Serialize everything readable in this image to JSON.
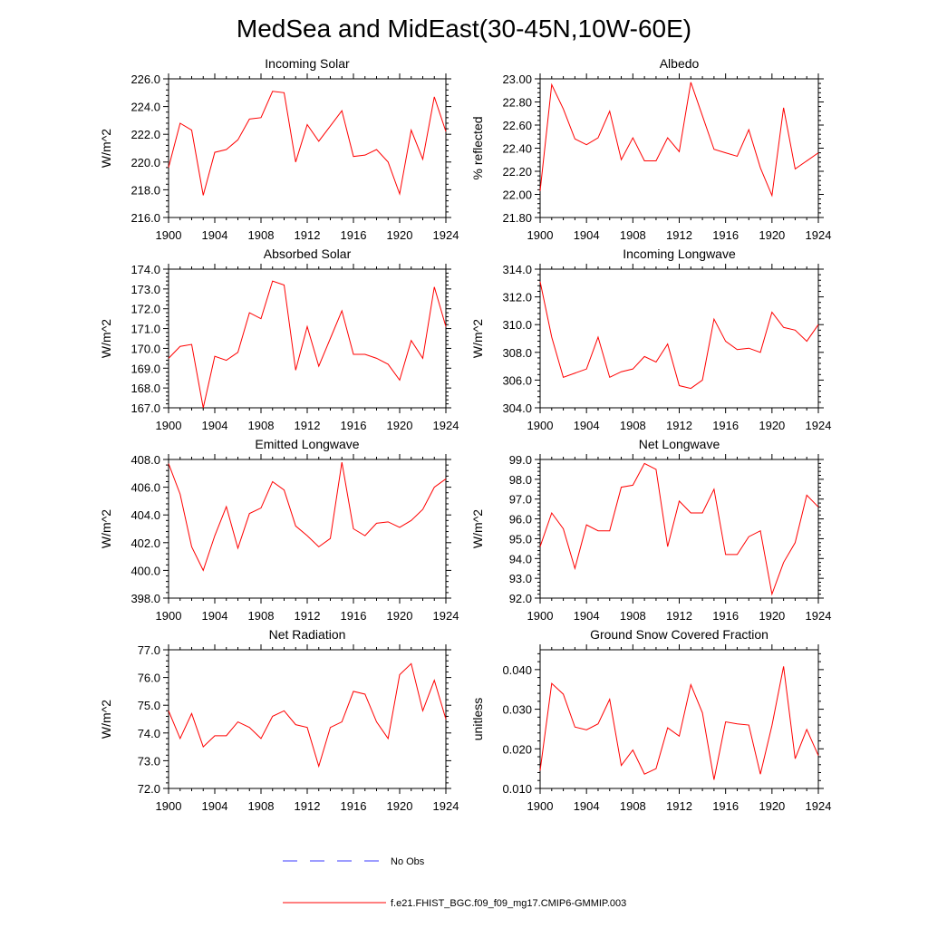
{
  "figure": {
    "title": "MedSea and MidEast(30-45N,10W-60E)",
    "legend": [
      {
        "label": "No Obs",
        "color": "#3b3bff",
        "dash": "dashed"
      },
      {
        "label": "f.e21.FHIST_BGC.f09_f09_mg17.CMIP6-GMMIP.003",
        "color": "#ff0000",
        "dash": "solid"
      }
    ]
  },
  "chart_data": [
    {
      "type": "line",
      "title": "Incoming Solar",
      "xlabel": "",
      "ylabel": "W/m^2",
      "xlim": [
        1900,
        1924
      ],
      "ylim": [
        216.0,
        226.0
      ],
      "x_ticks": [
        1900,
        1904,
        1908,
        1912,
        1916,
        1920,
        1924
      ],
      "x_tick_labels": [
        "1900",
        "1904",
        "1908",
        "1912",
        "1916",
        "1920",
        "1924"
      ],
      "y_ticks": [
        216.0,
        218.0,
        220.0,
        222.0,
        224.0,
        226.0
      ],
      "y_tick_labels": [
        "216.0",
        "218.0",
        "220.0",
        "222.0",
        "224.0",
        "226.0"
      ],
      "series": [
        {
          "color": "#ff0000",
          "x": [
            1900,
            1901,
            1902,
            1903,
            1904,
            1905,
            1906,
            1907,
            1908,
            1909,
            1910,
            1911,
            1912,
            1913,
            1914,
            1915,
            1916,
            1917,
            1918,
            1919,
            1920,
            1921,
            1922,
            1923,
            1924
          ],
          "values": [
            219.6,
            222.8,
            222.3,
            217.6,
            220.7,
            220.9,
            221.6,
            223.1,
            223.2,
            225.1,
            225.0,
            220.0,
            222.7,
            221.5,
            222.6,
            223.7,
            220.4,
            220.5,
            220.9,
            220.0,
            217.7,
            222.3,
            220.2,
            224.7,
            222.2
          ]
        }
      ]
    },
    {
      "type": "line",
      "title": "Albedo",
      "xlabel": "",
      "ylabel": "% reflected",
      "xlim": [
        1900,
        1924
      ],
      "ylim": [
        21.8,
        23.0
      ],
      "x_ticks": [
        1900,
        1904,
        1908,
        1912,
        1916,
        1920,
        1924
      ],
      "x_tick_labels": [
        "1900",
        "1904",
        "1908",
        "1912",
        "1916",
        "1920",
        "1924"
      ],
      "y_ticks": [
        21.8,
        22.0,
        22.2,
        22.4,
        22.6,
        22.8,
        23.0
      ],
      "y_tick_labels": [
        "21.80",
        "22.00",
        "22.20",
        "22.40",
        "22.60",
        "22.80",
        "23.00"
      ],
      "series": [
        {
          "color": "#ff0000",
          "x": [
            1900,
            1901,
            1902,
            1903,
            1904,
            1905,
            1906,
            1907,
            1908,
            1909,
            1910,
            1911,
            1912,
            1913,
            1914,
            1915,
            1916,
            1917,
            1918,
            1919,
            1920,
            1921,
            1922,
            1923,
            1924
          ],
          "values": [
            22.03,
            22.95,
            22.74,
            22.48,
            22.43,
            22.49,
            22.72,
            22.3,
            22.49,
            22.29,
            22.29,
            22.49,
            22.37,
            22.97,
            22.68,
            22.39,
            22.36,
            22.33,
            22.56,
            22.23,
            21.99,
            22.75,
            22.22,
            22.29,
            22.36
          ]
        }
      ]
    },
    {
      "type": "line",
      "title": "Absorbed Solar",
      "xlabel": "",
      "ylabel": "W/m^2",
      "xlim": [
        1900,
        1924
      ],
      "ylim": [
        167.0,
        174.0
      ],
      "x_ticks": [
        1900,
        1904,
        1908,
        1912,
        1916,
        1920,
        1924
      ],
      "x_tick_labels": [
        "1900",
        "1904",
        "1908",
        "1912",
        "1916",
        "1920",
        "1924"
      ],
      "y_ticks": [
        167.0,
        168.0,
        169.0,
        170.0,
        171.0,
        172.0,
        173.0,
        174.0
      ],
      "y_tick_labels": [
        "167.0",
        "168.0",
        "169.0",
        "170.0",
        "171.0",
        "172.0",
        "173.0",
        "174.0"
      ],
      "series": [
        {
          "color": "#ff0000",
          "x": [
            1900,
            1901,
            1902,
            1903,
            1904,
            1905,
            1906,
            1907,
            1908,
            1909,
            1910,
            1911,
            1912,
            1913,
            1914,
            1915,
            1916,
            1917,
            1918,
            1919,
            1920,
            1921,
            1922,
            1923,
            1924
          ],
          "values": [
            169.5,
            170.1,
            170.2,
            167.0,
            169.6,
            169.4,
            169.8,
            171.8,
            171.5,
            173.4,
            173.2,
            168.9,
            171.1,
            169.1,
            170.5,
            171.9,
            169.7,
            169.7,
            169.5,
            169.2,
            168.4,
            170.4,
            169.5,
            173.1,
            171.1
          ]
        }
      ]
    },
    {
      "type": "line",
      "title": "Incoming Longwave",
      "xlabel": "",
      "ylabel": "W/m^2",
      "xlim": [
        1900,
        1924
      ],
      "ylim": [
        304.0,
        314.0
      ],
      "x_ticks": [
        1900,
        1904,
        1908,
        1912,
        1916,
        1920,
        1924
      ],
      "x_tick_labels": [
        "1900",
        "1904",
        "1908",
        "1912",
        "1916",
        "1920",
        "1924"
      ],
      "y_ticks": [
        304.0,
        306.0,
        308.0,
        310.0,
        312.0,
        314.0
      ],
      "y_tick_labels": [
        "304.0",
        "306.0",
        "308.0",
        "310.0",
        "312.0",
        "314.0"
      ],
      "series": [
        {
          "color": "#ff0000",
          "x": [
            1900,
            1901,
            1902,
            1903,
            1904,
            1905,
            1906,
            1907,
            1908,
            1909,
            1910,
            1911,
            1912,
            1913,
            1914,
            1915,
            1916,
            1917,
            1918,
            1919,
            1920,
            1921,
            1922,
            1923,
            1924
          ],
          "values": [
            313.1,
            309.1,
            306.2,
            306.5,
            306.8,
            309.1,
            306.2,
            306.6,
            306.8,
            307.7,
            307.3,
            308.6,
            305.6,
            305.4,
            306.0,
            310.4,
            308.8,
            308.2,
            308.3,
            308.0,
            310.9,
            309.8,
            309.6,
            308.8,
            310.0
          ]
        }
      ]
    },
    {
      "type": "line",
      "title": "Emitted Longwave",
      "xlabel": "",
      "ylabel": "W/m^2",
      "xlim": [
        1900,
        1924
      ],
      "ylim": [
        398.0,
        408.0
      ],
      "x_ticks": [
        1900,
        1904,
        1908,
        1912,
        1916,
        1920,
        1924
      ],
      "x_tick_labels": [
        "1900",
        "1904",
        "1908",
        "1912",
        "1916",
        "1920",
        "1924"
      ],
      "y_ticks": [
        398.0,
        400.0,
        402.0,
        404.0,
        406.0,
        408.0
      ],
      "y_tick_labels": [
        "398.0",
        "400.0",
        "402.0",
        "404.0",
        "406.0",
        "408.0"
      ],
      "series": [
        {
          "color": "#ff0000",
          "x": [
            1900,
            1901,
            1902,
            1903,
            1904,
            1905,
            1906,
            1907,
            1908,
            1909,
            1910,
            1911,
            1912,
            1913,
            1914,
            1915,
            1916,
            1917,
            1918,
            1919,
            1920,
            1921,
            1922,
            1923,
            1924
          ],
          "values": [
            407.7,
            405.5,
            401.7,
            400.0,
            402.5,
            404.6,
            401.6,
            404.1,
            404.5,
            406.4,
            405.8,
            403.2,
            402.5,
            401.7,
            402.3,
            407.8,
            403.0,
            402.5,
            403.4,
            403.5,
            403.1,
            403.6,
            404.4,
            406.0,
            406.6
          ]
        }
      ]
    },
    {
      "type": "line",
      "title": "Net Longwave",
      "xlabel": "",
      "ylabel": "W/m^2",
      "xlim": [
        1900,
        1924
      ],
      "ylim": [
        92.0,
        99.0
      ],
      "x_ticks": [
        1900,
        1904,
        1908,
        1912,
        1916,
        1920,
        1924
      ],
      "x_tick_labels": [
        "1900",
        "1904",
        "1908",
        "1912",
        "1916",
        "1920",
        "1924"
      ],
      "y_ticks": [
        92.0,
        93.0,
        94.0,
        95.0,
        96.0,
        97.0,
        98.0,
        99.0
      ],
      "y_tick_labels": [
        "92.0",
        "93.0",
        "94.0",
        "95.0",
        "96.0",
        "97.0",
        "98.0",
        "99.0"
      ],
      "series": [
        {
          "color": "#ff0000",
          "x": [
            1900,
            1901,
            1902,
            1903,
            1904,
            1905,
            1906,
            1907,
            1908,
            1909,
            1910,
            1911,
            1912,
            1913,
            1914,
            1915,
            1916,
            1917,
            1918,
            1919,
            1920,
            1921,
            1922,
            1923,
            1924
          ],
          "values": [
            94.6,
            96.3,
            95.5,
            93.5,
            95.7,
            95.4,
            95.4,
            97.6,
            97.7,
            98.8,
            98.5,
            94.6,
            96.9,
            96.3,
            96.3,
            97.5,
            94.2,
            94.2,
            95.1,
            95.4,
            92.2,
            93.8,
            94.8,
            97.2,
            96.6
          ]
        }
      ]
    },
    {
      "type": "line",
      "title": "Net Radiation",
      "xlabel": "",
      "ylabel": "W/m^2",
      "xlim": [
        1900,
        1924
      ],
      "ylim": [
        72.0,
        77.0
      ],
      "x_ticks": [
        1900,
        1904,
        1908,
        1912,
        1916,
        1920,
        1924
      ],
      "x_tick_labels": [
        "1900",
        "1904",
        "1908",
        "1912",
        "1916",
        "1920",
        "1924"
      ],
      "y_ticks": [
        72.0,
        73.0,
        74.0,
        75.0,
        76.0,
        77.0
      ],
      "y_tick_labels": [
        "72.0",
        "73.0",
        "74.0",
        "75.0",
        "76.0",
        "77.0"
      ],
      "series": [
        {
          "color": "#ff0000",
          "x": [
            1900,
            1901,
            1902,
            1903,
            1904,
            1905,
            1906,
            1907,
            1908,
            1909,
            1910,
            1911,
            1912,
            1913,
            1914,
            1915,
            1916,
            1917,
            1918,
            1919,
            1920,
            1921,
            1922,
            1923,
            1924
          ],
          "values": [
            74.8,
            73.8,
            74.7,
            73.5,
            73.9,
            73.9,
            74.4,
            74.2,
            73.8,
            74.6,
            74.8,
            74.3,
            74.2,
            72.8,
            74.2,
            74.4,
            75.5,
            75.4,
            74.4,
            73.8,
            76.1,
            76.5,
            74.8,
            75.9,
            74.5
          ]
        }
      ]
    },
    {
      "type": "line",
      "title": "Ground Snow Covered Fraction",
      "xlabel": "",
      "ylabel": "unitless",
      "xlim": [
        1900,
        1924
      ],
      "ylim": [
        0.01,
        0.045
      ],
      "x_ticks": [
        1900,
        1904,
        1908,
        1912,
        1916,
        1920,
        1924
      ],
      "x_tick_labels": [
        "1900",
        "1904",
        "1908",
        "1912",
        "1916",
        "1920",
        "1924"
      ],
      "y_ticks": [
        0.01,
        0.02,
        0.03,
        0.04
      ],
      "y_tick_labels": [
        "0.010",
        "0.020",
        "0.030",
        "0.040"
      ],
      "series": [
        {
          "color": "#ff0000",
          "x": [
            1900,
            1901,
            1902,
            1903,
            1904,
            1905,
            1906,
            1907,
            1908,
            1909,
            1910,
            1911,
            1912,
            1913,
            1914,
            1915,
            1916,
            1917,
            1918,
            1919,
            1920,
            1921,
            1922,
            1923,
            1924
          ],
          "values": [
            0.0145,
            0.0365,
            0.0338,
            0.0255,
            0.0248,
            0.0263,
            0.0325,
            0.0158,
            0.0197,
            0.0136,
            0.015,
            0.0253,
            0.0232,
            0.0362,
            0.0291,
            0.0122,
            0.0268,
            0.0263,
            0.026,
            0.0136,
            0.0259,
            0.0408,
            0.0175,
            0.0249,
            0.0183
          ]
        }
      ]
    }
  ]
}
